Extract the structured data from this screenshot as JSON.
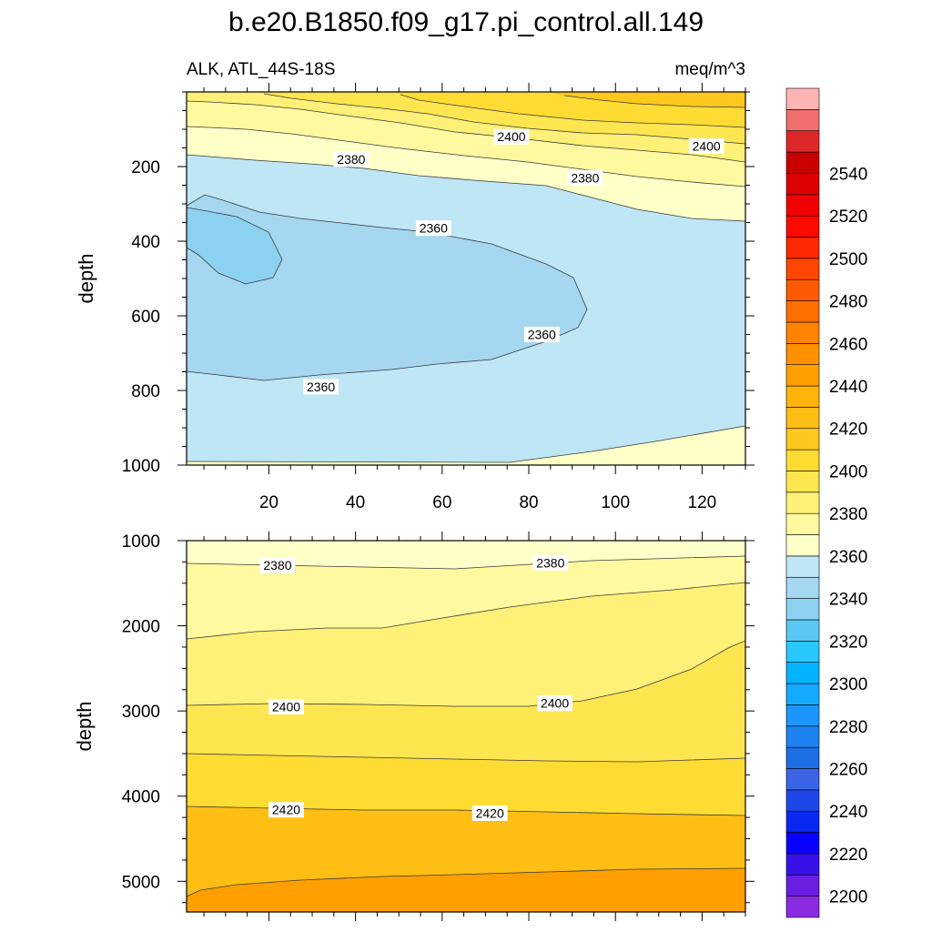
{
  "figure": {
    "title": "b.e20.B1850.f09_g17.pi_control.all.149",
    "left_string": "ALK, ATL_44S-18S",
    "right_string": "meq/m^3"
  },
  "chart_data": [
    {
      "type": "contour",
      "panel": "upper",
      "ylabel": "depth",
      "xlabel": "",
      "xlim": [
        1,
        130
      ],
      "ylim": [
        0,
        1000
      ],
      "y_reversed": true,
      "x_ticks": [
        "20",
        "40",
        "60",
        "80",
        "100",
        "120"
      ],
      "x_tick_values": [
        20,
        40,
        60,
        80,
        100,
        120
      ],
      "y_ticks": [
        "200",
        "400",
        "600",
        "800",
        "1000"
      ],
      "y_tick_values": [
        200,
        400,
        600,
        800,
        1000
      ],
      "contour_levels": [
        2340,
        2350,
        2360,
        2370,
        2380,
        2390,
        2400,
        2410,
        2420
      ],
      "contour_labels": [
        {
          "text": "2400",
          "x": 76,
          "depth": 120
        },
        {
          "text": "2400",
          "x": 121,
          "depth": 145
        },
        {
          "text": "2380",
          "x": 39,
          "depth": 180
        },
        {
          "text": "2380",
          "x": 93,
          "depth": 230
        },
        {
          "text": "2360",
          "x": 58,
          "depth": 365
        },
        {
          "text": "2360",
          "x": 83,
          "depth": 650
        },
        {
          "text": "2360",
          "x": 32,
          "depth": 790
        }
      ]
    },
    {
      "type": "contour",
      "panel": "lower",
      "ylabel": "depth",
      "xlabel": "",
      "xlim": [
        1,
        130
      ],
      "ylim": [
        1000,
        5360
      ],
      "y_reversed": true,
      "y_ticks": [
        "1000",
        "2000",
        "3000",
        "4000",
        "5000"
      ],
      "y_tick_values": [
        1000,
        2000,
        3000,
        4000,
        5000
      ],
      "contour_levels": [
        2380,
        2390,
        2400,
        2410,
        2420,
        2430
      ],
      "contour_labels": [
        {
          "text": "2380",
          "x": 22,
          "depth": 1290
        },
        {
          "text": "2380",
          "x": 85,
          "depth": 1260
        },
        {
          "text": "2400",
          "x": 24,
          "depth": 2950
        },
        {
          "text": "2400",
          "x": 86,
          "depth": 2910
        },
        {
          "text": "2420",
          "x": 24,
          "depth": 4160
        },
        {
          "text": "2420",
          "x": 71,
          "depth": 4200
        }
      ]
    },
    {
      "type": "colorbar",
      "labels": [
        "2200",
        "2220",
        "2240",
        "2260",
        "2280",
        "2300",
        "2320",
        "2340",
        "2360",
        "2380",
        "2400",
        "2420",
        "2440",
        "2460",
        "2480",
        "2500",
        "2520",
        "2540"
      ],
      "values": [
        2200,
        2220,
        2240,
        2260,
        2280,
        2300,
        2320,
        2340,
        2360,
        2380,
        2400,
        2420,
        2440,
        2460,
        2480,
        2500,
        2520,
        2540
      ],
      "colors": [
        "#8a2be2",
        "#6a1ee0",
        "#3a10e8",
        "#0a00ff",
        "#0a28f0",
        "#1e46e6",
        "#3c64e6",
        "#1e6ee6",
        "#1e82f0",
        "#1e96ff",
        "#14aaff",
        "#00b4ff",
        "#28c8ff",
        "#5ac8f5",
        "#8cd2f0",
        "#a5d7f0",
        "#bee6f5",
        "#ffffc8",
        "#fffaa0",
        "#fff078",
        "#ffe650",
        "#ffdc32",
        "#ffc81e",
        "#ffbe14",
        "#ffb40a",
        "#ffa000",
        "#ff9100",
        "#ff8200",
        "#ff6e00",
        "#ff5a00",
        "#ff4600",
        "#ff2800",
        "#ff0a00",
        "#f00000",
        "#dc0000",
        "#c80000",
        "#dc2828",
        "#f06e6e",
        "#ffb4b4"
      ]
    }
  ]
}
